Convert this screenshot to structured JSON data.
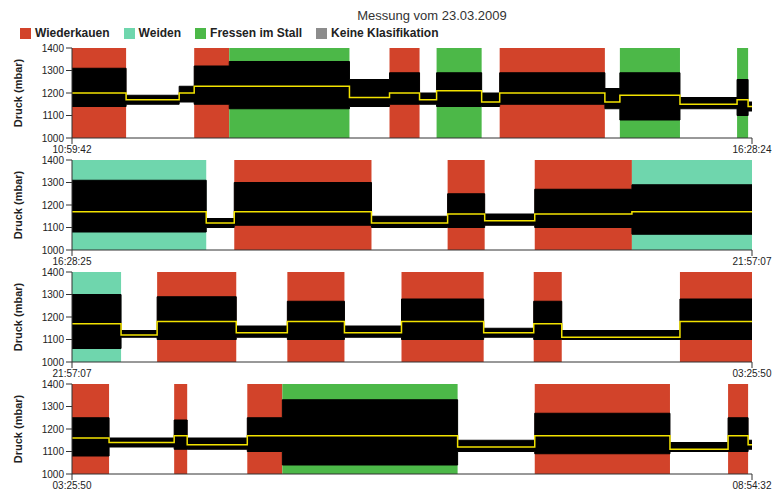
{
  "title": "Messung vom 23.03.2009",
  "classes": [
    {
      "name": "Wiederkauen",
      "color": "#d2432a"
    },
    {
      "name": "Weiden",
      "color": "#6fd6ad"
    },
    {
      "name": "Fressen im Stall",
      "color": "#4cb848"
    },
    {
      "name": "Keine Klasifikation",
      "color": "#8c8c8c"
    }
  ],
  "chart_data": [
    {
      "type": "area",
      "y_label": "Druck (mbar)",
      "xlim": [
        39582,
        59304
      ],
      "xticks": [
        {
          "value": 39582,
          "label": "10:59:42"
        },
        {
          "value": 59304,
          "label": "16:28:24"
        }
      ],
      "ylim": [
        1000,
        1400
      ],
      "yticks": [
        1000,
        1100,
        1200,
        1300,
        1400
      ],
      "segments": [
        {
          "start": 39582,
          "end": 41151,
          "class": "Wiederkauen",
          "low": 1140,
          "high": 1310,
          "mean": 1200
        },
        {
          "start": 41151,
          "end": 42690,
          "class": null,
          "low": 1150,
          "high": 1190,
          "mean": 1170
        },
        {
          "start": 42690,
          "end": 43126,
          "class": null,
          "low": 1160,
          "high": 1230,
          "mean": 1200
        },
        {
          "start": 43126,
          "end": 44143,
          "class": "Wiederkauen",
          "low": 1150,
          "high": 1320,
          "mean": 1230
        },
        {
          "start": 44143,
          "end": 47629,
          "class": "Fressen im Stall",
          "low": 1130,
          "high": 1340,
          "mean": 1230
        },
        {
          "start": 47629,
          "end": 48791,
          "class": null,
          "low": 1140,
          "high": 1260,
          "mean": 1180
        },
        {
          "start": 48791,
          "end": 49662,
          "class": "Wiederkauen",
          "low": 1150,
          "high": 1290,
          "mean": 1200
        },
        {
          "start": 49662,
          "end": 50156,
          "class": null,
          "low": 1150,
          "high": 1200,
          "mean": 1170
        },
        {
          "start": 50156,
          "end": 51463,
          "class": "Fressen im Stall",
          "low": 1140,
          "high": 1290,
          "mean": 1210
        },
        {
          "start": 51463,
          "end": 51986,
          "class": null,
          "low": 1140,
          "high": 1200,
          "mean": 1160
        },
        {
          "start": 51986,
          "end": 55037,
          "class": "Wiederkauen",
          "low": 1150,
          "high": 1290,
          "mean": 1200
        },
        {
          "start": 55037,
          "end": 55472,
          "class": null,
          "low": 1130,
          "high": 1220,
          "mean": 1160
        },
        {
          "start": 55472,
          "end": 57215,
          "class": "Fressen im Stall",
          "low": 1080,
          "high": 1290,
          "mean": 1190
        },
        {
          "start": 57215,
          "end": 58871,
          "class": null,
          "low": 1130,
          "high": 1180,
          "mean": 1150
        },
        {
          "start": 58871,
          "end": 59191,
          "class": "Fressen im Stall",
          "low": 1100,
          "high": 1260,
          "mean": 1170
        },
        {
          "start": 59191,
          "end": 59304,
          "class": null,
          "low": 1120,
          "high": 1160,
          "mean": 1140
        }
      ]
    },
    {
      "type": "area",
      "y_label": "Druck (mbar)",
      "xlim": [
        59305,
        79027
      ],
      "xticks": [
        {
          "value": 59305,
          "label": "16:28:25"
        },
        {
          "value": 79027,
          "label": "21:57:07"
        }
      ],
      "ylim": [
        1000,
        1400
      ],
      "yticks": [
        1000,
        1100,
        1200,
        1300,
        1400
      ],
      "segments": [
        {
          "start": 59305,
          "end": 63198,
          "class": "Weiden",
          "low": 1080,
          "high": 1310,
          "mean": 1170
        },
        {
          "start": 63198,
          "end": 64011,
          "class": null,
          "low": 1100,
          "high": 1140,
          "mean": 1120
        },
        {
          "start": 64011,
          "end": 67991,
          "class": "Wiederkauen",
          "low": 1110,
          "high": 1300,
          "mean": 1170
        },
        {
          "start": 67991,
          "end": 70199,
          "class": null,
          "low": 1100,
          "high": 1150,
          "mean": 1120
        },
        {
          "start": 70199,
          "end": 71274,
          "class": "Wiederkauen",
          "low": 1100,
          "high": 1250,
          "mean": 1160
        },
        {
          "start": 71274,
          "end": 72726,
          "class": null,
          "low": 1110,
          "high": 1160,
          "mean": 1130
        },
        {
          "start": 72726,
          "end": 75544,
          "class": "Wiederkauen",
          "low": 1100,
          "high": 1270,
          "mean": 1160
        },
        {
          "start": 75544,
          "end": 79027,
          "class": "Weiden",
          "low": 1070,
          "high": 1290,
          "mean": 1170
        }
      ]
    },
    {
      "type": "area",
      "y_label": "Druck (mbar)",
      "xlim": [
        79027,
        98750
      ],
      "xticks": [
        {
          "value": 79027,
          "label": "21:57:07"
        },
        {
          "value": 98750,
          "label": "03:25:50"
        }
      ],
      "ylim": [
        1000,
        1400
      ],
      "yticks": [
        1000,
        1100,
        1200,
        1300,
        1400
      ],
      "segments": [
        {
          "start": 79027,
          "end": 80450,
          "class": "Weiden",
          "low": 1060,
          "high": 1300,
          "mean": 1170
        },
        {
          "start": 80450,
          "end": 81496,
          "class": null,
          "low": 1110,
          "high": 1140,
          "mean": 1120
        },
        {
          "start": 81496,
          "end": 83791,
          "class": "Wiederkauen",
          "low": 1100,
          "high": 1290,
          "mean": 1180
        },
        {
          "start": 83791,
          "end": 85273,
          "class": null,
          "low": 1110,
          "high": 1160,
          "mean": 1130
        },
        {
          "start": 85273,
          "end": 86929,
          "class": "Wiederkauen",
          "low": 1100,
          "high": 1270,
          "mean": 1180
        },
        {
          "start": 86929,
          "end": 88584,
          "class": null,
          "low": 1110,
          "high": 1160,
          "mean": 1130
        },
        {
          "start": 88584,
          "end": 90967,
          "class": "Wiederkauen",
          "low": 1100,
          "high": 1280,
          "mean": 1180
        },
        {
          "start": 90967,
          "end": 92419,
          "class": null,
          "low": 1110,
          "high": 1150,
          "mean": 1130
        },
        {
          "start": 92419,
          "end": 93232,
          "class": "Wiederkauen",
          "low": 1100,
          "high": 1270,
          "mean": 1170
        },
        {
          "start": 93232,
          "end": 96660,
          "class": null,
          "low": 1100,
          "high": 1140,
          "mean": 1110
        },
        {
          "start": 96660,
          "end": 98750,
          "class": "Wiederkauen",
          "low": 1100,
          "high": 1280,
          "mean": 1180
        }
      ]
    },
    {
      "type": "area",
      "y_label": "Druck (mbar)",
      "xlim": [
        98750,
        118472
      ],
      "xticks": [
        {
          "value": 98750,
          "label": "03:25:50"
        },
        {
          "value": 118472,
          "label": "08:54:32"
        }
      ],
      "ylim": [
        1000,
        1400
      ],
      "yticks": [
        1000,
        1100,
        1200,
        1300,
        1400
      ],
      "segments": [
        {
          "start": 98750,
          "end": 99825,
          "class": "Wiederkauen",
          "low": 1080,
          "high": 1250,
          "mean": 1160
        },
        {
          "start": 99825,
          "end": 101713,
          "class": null,
          "low": 1120,
          "high": 1160,
          "mean": 1140
        },
        {
          "start": 101713,
          "end": 102091,
          "class": "Wiederkauen",
          "low": 1110,
          "high": 1240,
          "mean": 1170
        },
        {
          "start": 102091,
          "end": 103834,
          "class": null,
          "low": 1110,
          "high": 1160,
          "mean": 1130
        },
        {
          "start": 103834,
          "end": 104851,
          "class": "Wiederkauen",
          "low": 1100,
          "high": 1250,
          "mean": 1170
        },
        {
          "start": 104851,
          "end": 109934,
          "class": "Fressen im Stall",
          "low": 1040,
          "high": 1330,
          "mean": 1170
        },
        {
          "start": 109934,
          "end": 112171,
          "class": null,
          "low": 1100,
          "high": 1150,
          "mean": 1120
        },
        {
          "start": 112171,
          "end": 116093,
          "class": "Wiederkauen",
          "low": 1090,
          "high": 1270,
          "mean": 1170
        },
        {
          "start": 116093,
          "end": 117778,
          "class": null,
          "low": 1100,
          "high": 1140,
          "mean": 1110
        },
        {
          "start": 117778,
          "end": 118359,
          "class": "Wiederkauen",
          "low": 1100,
          "high": 1250,
          "mean": 1170
        },
        {
          "start": 118359,
          "end": 118472,
          "class": null,
          "low": 1110,
          "high": 1150,
          "mean": 1130
        }
      ]
    }
  ]
}
